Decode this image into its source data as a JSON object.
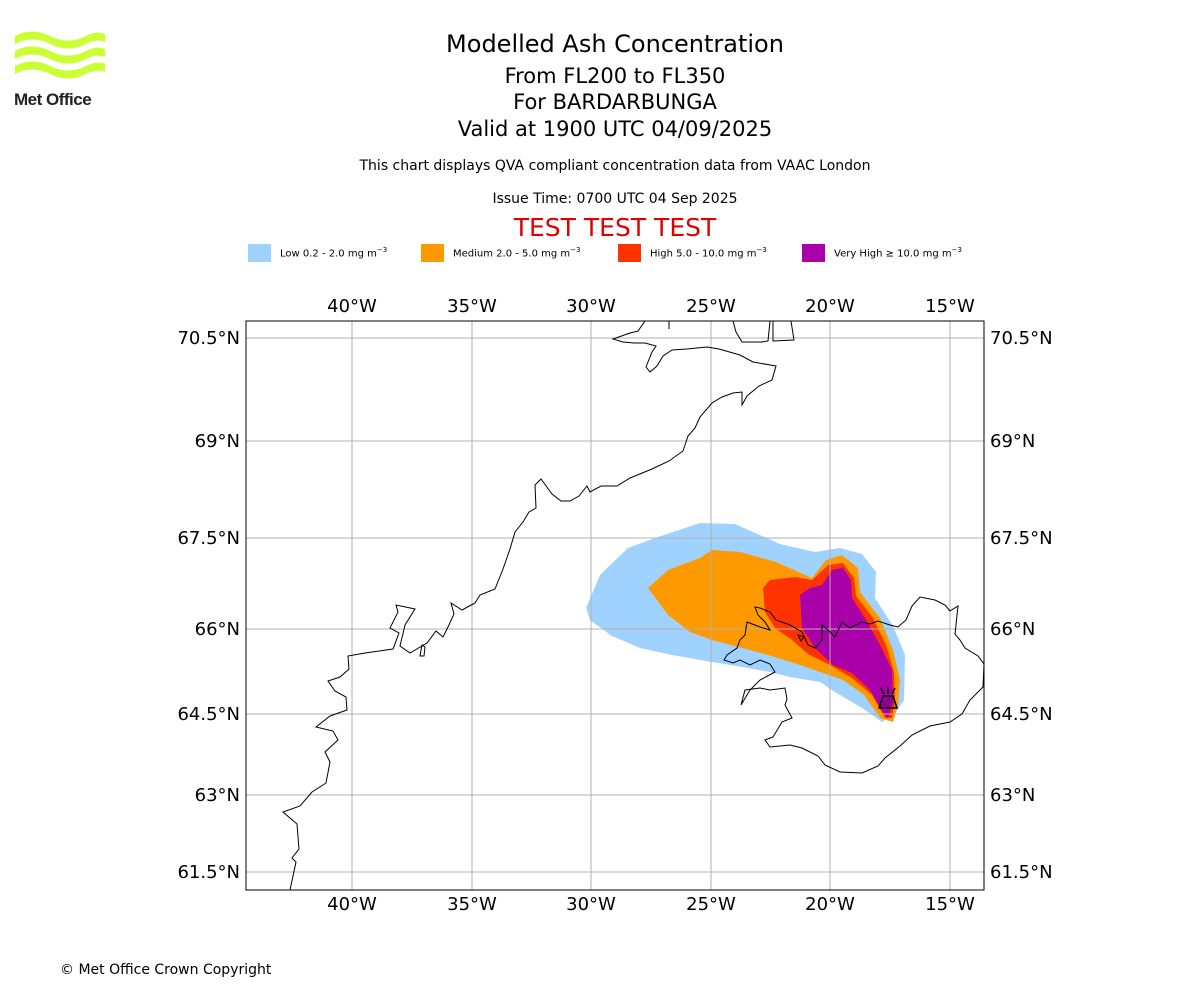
{
  "header": {
    "title_line1": "Modelled Ash Concentration",
    "title_line2": "From FL200 to FL350",
    "title_line3": "For BARDARBUNGA",
    "title_line4": "Valid at 1900 UTC 04/09/2025",
    "subtitle": "This chart displays QVA compliant concentration data from VAAC London",
    "issue_time": "Issue Time: 0700 UTC 04 Sep 2025",
    "test_banner": "TEST TEST TEST"
  },
  "logo": {
    "text": "Met Office",
    "color": "#ccff33"
  },
  "legend": [
    {
      "prefix": "Low 0.2 - 2.0 mg m",
      "exponent": "−3",
      "color": "#a0d2ff"
    },
    {
      "prefix": "Medium 2.0 - 5.0 mg m",
      "exponent": "−3",
      "color": "#ff9900"
    },
    {
      "prefix": "High 5.0 - 10.0 mg m",
      "exponent": "−3",
      "color": "#ff3300"
    },
    {
      "prefix": "Very High  ≥  10.0 mg m",
      "exponent": "−3",
      "color": "#aa00aa"
    }
  ],
  "map": {
    "lon_ticks": [
      "40°W",
      "35°W",
      "30°W",
      "25°W",
      "20°W",
      "15°W"
    ],
    "lat_ticks": [
      "70.5°N",
      "69°N",
      "67.5°N",
      "66°N",
      "64.5°N",
      "63°N",
      "61.5°N"
    ],
    "lon_range": [
      -44.4,
      -13.6
    ],
    "lat_range": [
      61.2,
      70.8
    ],
    "volcano": {
      "name": "BARDARBUNGA",
      "lon": -17.5,
      "lat": 64.64,
      "icon": "volcano-icon"
    },
    "colors": {
      "grid": "#b0b0b0",
      "coast": "#000000"
    }
  },
  "footer": {
    "copyright": "© Met Office Crown Copyright"
  }
}
